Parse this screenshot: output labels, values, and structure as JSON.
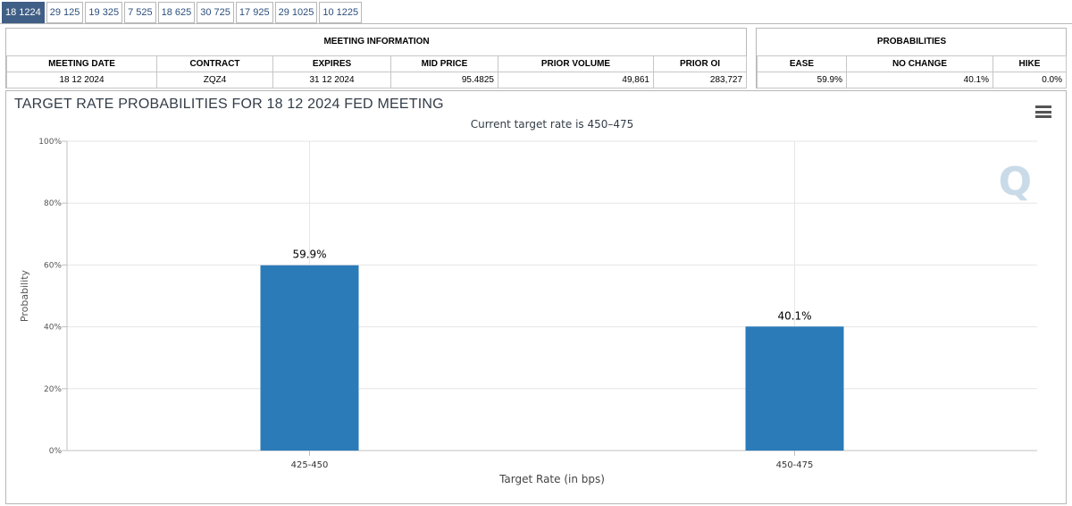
{
  "tabs": [
    "18 1224",
    "29 125",
    "19 325",
    "7 525",
    "18 625",
    "30 725",
    "17 925",
    "29 1025",
    "10 1225"
  ],
  "active_tab": 0,
  "meeting_info": {
    "title": "MEETING INFORMATION",
    "headers": [
      "MEETING DATE",
      "CONTRACT",
      "EXPIRES",
      "MID PRICE",
      "PRIOR VOLUME",
      "PRIOR OI"
    ],
    "values": [
      "18 12 2024",
      "ZQZ4",
      "31 12 2024",
      "95.4825",
      "49,861",
      "283,727"
    ]
  },
  "probabilities": {
    "title": "PROBABILITIES",
    "headers": [
      "EASE",
      "NO CHANGE",
      "HIKE"
    ],
    "values": [
      "59.9%",
      "40.1%",
      "0.0%"
    ]
  },
  "chart_data": {
    "type": "bar",
    "title": "TARGET RATE PROBABILITIES FOR 18 12 2024 FED MEETING",
    "subtitle": "Current target rate is 450–475",
    "xlabel": "Target Rate (in bps)",
    "ylabel": "Probability",
    "categories": [
      "425-450",
      "450-475"
    ],
    "values": [
      59.9,
      40.1
    ],
    "data_labels": [
      "59.9%",
      "40.1%"
    ],
    "ylim": [
      0,
      100
    ],
    "yticks": [
      0,
      20,
      40,
      60,
      80,
      100
    ],
    "ytick_labels": [
      "0%",
      "20%",
      "40%",
      "60%",
      "80%",
      "100%"
    ],
    "bar_color": "#2b7bb9",
    "grid": true,
    "watermark": "Q"
  },
  "icons": {
    "menu": "hamburger-menu-icon"
  }
}
